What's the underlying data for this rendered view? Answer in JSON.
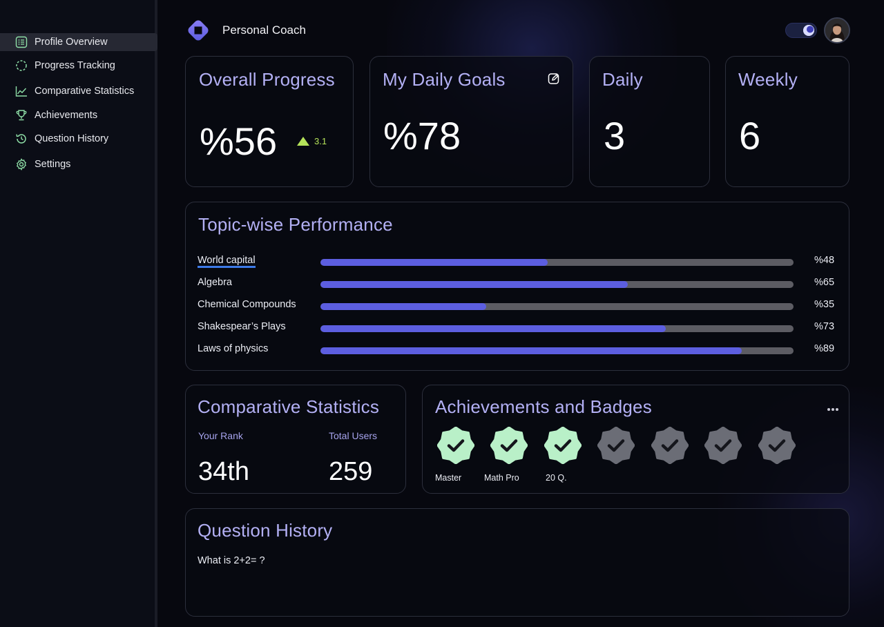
{
  "app": {
    "title": "Personal Coach"
  },
  "sidebar": {
    "items": [
      {
        "label": "Profile Overview",
        "icon": "list-icon",
        "active": true
      },
      {
        "label": "Progress Tracking",
        "icon": "progress-circle-icon"
      },
      {
        "label": "Comparative Statistics",
        "icon": "chart-line-icon"
      },
      {
        "label": "Achievements",
        "icon": "trophy-icon"
      },
      {
        "label": "Question History",
        "icon": "history-icon"
      },
      {
        "label": "Settings",
        "icon": "gear-icon"
      }
    ]
  },
  "overall": {
    "title": "Overall Progress",
    "value": "%56",
    "trend": "3.1"
  },
  "daily_goals": {
    "title": "My Daily Goals",
    "value": "%78"
  },
  "daily": {
    "title": "Daily",
    "value": "3"
  },
  "weekly": {
    "title": "Weekly",
    "value": "6"
  },
  "topics": {
    "title": "Topic-wise Performance",
    "items": [
      {
        "label": "World capital",
        "percent": 48,
        "percent_label": "%48"
      },
      {
        "label": "Algebra",
        "percent": 65,
        "percent_label": "%65"
      },
      {
        "label": "Chemical Compounds",
        "percent": 35,
        "percent_label": "%35"
      },
      {
        "label": "Shakespear’s Plays",
        "percent": 73,
        "percent_label": "%73"
      },
      {
        "label": "Laws of physics",
        "percent": 89,
        "percent_label": "%89"
      }
    ]
  },
  "comparative": {
    "title": "Comparative Statistics",
    "rank_label": "Your Rank",
    "rank_value": "34th",
    "users_label": "Total Users",
    "users_value": "259"
  },
  "achievements": {
    "title": "Achievements and Badges",
    "badges": [
      {
        "label": "Master",
        "earned": true
      },
      {
        "label": "Math Pro",
        "earned": true
      },
      {
        "label": "20 Q.",
        "earned": true
      },
      {
        "label": "",
        "earned": false
      },
      {
        "label": "",
        "earned": false
      },
      {
        "label": "",
        "earned": false
      },
      {
        "label": "",
        "earned": false
      }
    ]
  },
  "history": {
    "title": "Question History",
    "question": "What is 2+2= ?"
  },
  "colors": {
    "accent": "#5c5ee0",
    "title": "#b3b0f4",
    "earned_badge": "#b9f0c8",
    "locked_badge": "#6b6d76",
    "trend_up": "#b5e35a"
  }
}
